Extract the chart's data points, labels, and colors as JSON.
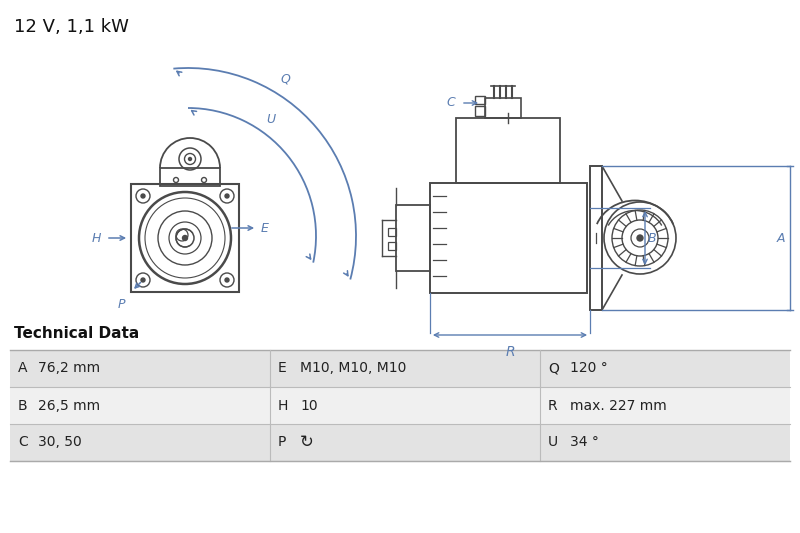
{
  "title": "12 V, 1,1 kW",
  "title_fontsize": 13,
  "bg_color": "#ffffff",
  "diagram_color": "#5b7db1",
  "line_color": "#4a4a4a",
  "table_header": "Technical Data",
  "table_rows": [
    [
      "A",
      "76,2 mm",
      "E",
      "M10, M10, M10",
      "Q",
      "120 °"
    ],
    [
      "B",
      "26,5 mm",
      "H",
      "10",
      "R",
      "max. 227 mm"
    ],
    [
      "C",
      "30, 50",
      "P",
      "↻",
      "U",
      "34 °"
    ]
  ],
  "row_bg_odd": "#e3e3e3",
  "row_bg_even": "#f0f0f0"
}
